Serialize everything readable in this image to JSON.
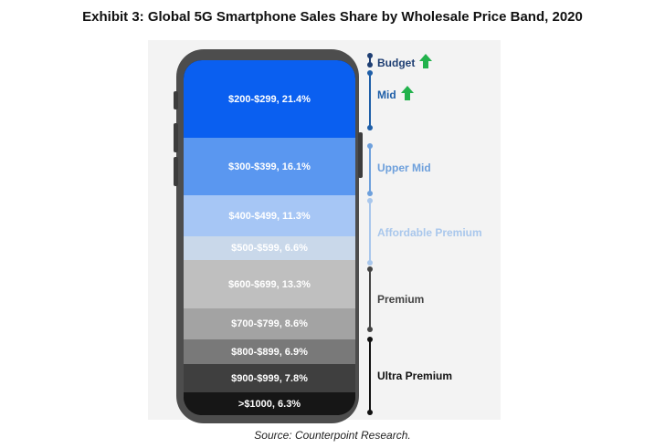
{
  "title": "Exhibit 3:  Global 5G Smartphone Sales Share by Wholesale Price Band, 2020",
  "source": "Source:  Counterpoint Research.",
  "chart_data": {
    "type": "bar",
    "categories": [
      "$200-$299",
      "$300-$399",
      "$400-$499",
      "$500-$599",
      "$600-$699",
      "$700-$799",
      "$800-$899",
      "$900-$999",
      ">$1000"
    ],
    "values": [
      21.4,
      16.1,
      11.3,
      6.6,
      13.3,
      8.6,
      6.9,
      7.8,
      6.3
    ],
    "labels": [
      "$200-$299, 21.4%",
      "$300-$399, 16.1%",
      "$400-$499, 11.3%",
      "$500-$599, 6.6%",
      "$600-$699, 13.3%",
      "$700-$799, 8.6%",
      "$800-$899, 6.9%",
      "$900-$999, 7.8%",
      ">$1000, 6.3%"
    ],
    "colors": [
      "#0a5ff0",
      "#5a97f0",
      "#a6c6f5",
      "#c9d8ea",
      "#bfbfbf",
      "#a3a3a3",
      "#797979",
      "#3f3f3f",
      "#161616"
    ],
    "segments": [
      {
        "name": "Budget",
        "color": "#1f3f73",
        "arrow": true
      },
      {
        "name": "Mid",
        "color": "#1f5fa8",
        "arrow": true
      },
      {
        "name": "Upper Mid",
        "color": "#6ea0dc"
      },
      {
        "name": "Affordable Premium",
        "color": "#a9c7ec"
      },
      {
        "name": "Premium",
        "color": "#444444"
      },
      {
        "name": "Ultra Premium",
        "color": "#111111"
      }
    ],
    "arrow_color": "#22b24c"
  }
}
